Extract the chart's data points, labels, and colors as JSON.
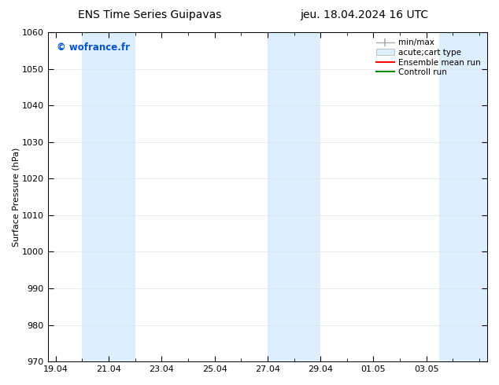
{
  "title_left": "ENS Time Series Guipavas",
  "title_right": "jeu. 18.04.2024 16 UTC",
  "ylabel": "Surface Pressure (hPa)",
  "ylim": [
    970,
    1060
  ],
  "yticks": [
    970,
    980,
    990,
    1000,
    1010,
    1020,
    1030,
    1040,
    1050,
    1060
  ],
  "xtick_labels": [
    "19.04",
    "21.04",
    "23.04",
    "25.04",
    "27.04",
    "29.04",
    "01.05",
    "03.05"
  ],
  "xtick_positions": [
    0,
    2,
    4,
    6,
    8,
    10,
    12,
    14
  ],
  "xlim": [
    -0.3,
    16.3
  ],
  "watermark": "© wofrance.fr",
  "watermark_color": "#0055cc",
  "bg_color": "#ffffff",
  "plot_bg_color": "#ffffff",
  "shaded_bands": [
    {
      "x_start": 1.0,
      "x_end": 3.0,
      "color": "#ddeeff"
    },
    {
      "x_start": 8.0,
      "x_end": 10.0,
      "color": "#ddeeff"
    },
    {
      "x_start": 14.5,
      "x_end": 16.5,
      "color": "#ddeeff"
    }
  ],
  "legend_items": [
    {
      "label": "min/max",
      "type": "errorbar",
      "color": "#aaaaaa"
    },
    {
      "label": "acute;cart type",
      "type": "patch",
      "color": "#ddeeff"
    },
    {
      "label": "Ensemble mean run",
      "type": "line",
      "color": "#ff0000"
    },
    {
      "label": "Controll run",
      "type": "line",
      "color": "#008800"
    }
  ],
  "title_fontsize": 10,
  "axis_fontsize": 8,
  "tick_fontsize": 8,
  "legend_fontsize": 7.5
}
